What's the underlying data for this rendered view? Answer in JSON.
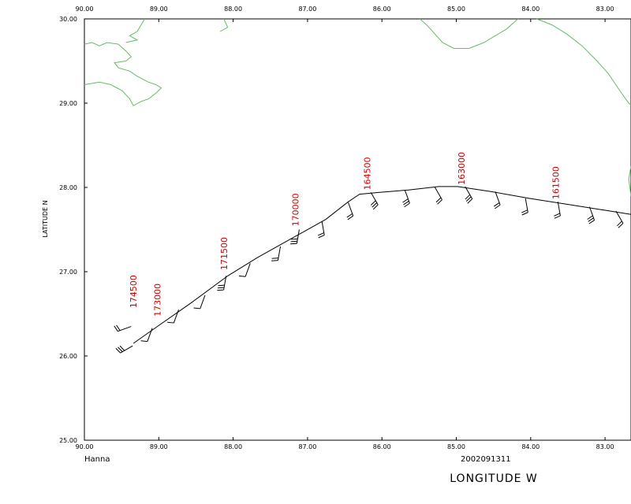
{
  "map": {
    "x_ticks": [
      "90.00",
      "89.00",
      "88.00",
      "87.00",
      "86.00",
      "85.00",
      "84.00",
      "83.00"
    ],
    "y_ticks": [
      "30.00",
      "29.00",
      "28.00",
      "27.00",
      "26.00",
      "25.00"
    ],
    "ylabel": "LATITUDE  N",
    "xlabel": "LONGITUDE  W",
    "storm_name": "Hanna",
    "date": "2002091311",
    "lon_range": [
      -90.0,
      -82.75
    ],
    "lat_range": [
      25.0,
      30.0
    ],
    "coast_color": "#66bb66",
    "track_color": "#000000",
    "label_color": "#d40000"
  },
  "chart_data": {
    "type": "map",
    "track": [
      {
        "lon": -89.35,
        "lat": 26.15
      },
      {
        "lon": -89.0,
        "lat": 26.37
      },
      {
        "lon": -88.6,
        "lat": 26.62
      },
      {
        "lon": -88.1,
        "lat": 26.95
      },
      {
        "lon": -87.7,
        "lat": 27.17
      },
      {
        "lon": -87.2,
        "lat": 27.42
      },
      {
        "lon": -86.8,
        "lat": 27.62
      },
      {
        "lon": -86.5,
        "lat": 27.83
      },
      {
        "lon": -86.35,
        "lat": 27.92
      },
      {
        "lon": -86.1,
        "lat": 27.94
      },
      {
        "lon": -85.7,
        "lat": 27.97
      },
      {
        "lon": -85.3,
        "lat": 28.01
      },
      {
        "lon": -85.05,
        "lat": 28.01
      },
      {
        "lon": -84.6,
        "lat": 27.95
      },
      {
        "lon": -84.1,
        "lat": 27.87
      },
      {
        "lon": -83.6,
        "lat": 27.8
      },
      {
        "lon": -83.1,
        "lat": 27.73
      },
      {
        "lon": -82.75,
        "lat": 27.68
      }
    ],
    "time_labels": [
      {
        "text": "174500",
        "lon": -89.35,
        "lat": 26.55
      },
      {
        "text": "173000",
        "lon": -89.03,
        "lat": 26.45
      },
      {
        "text": "171500",
        "lon": -88.15,
        "lat": 27.0
      },
      {
        "text": "170000",
        "lon": -87.2,
        "lat": 27.52
      },
      {
        "text": "164500",
        "lon": -86.25,
        "lat": 27.95
      },
      {
        "text": "163000",
        "lon": -85.0,
        "lat": 28.01
      },
      {
        "text": "161500",
        "lon": -83.75,
        "lat": 27.84
      }
    ],
    "wind_barbs": [
      {
        "lon": -89.36,
        "lat": 26.12,
        "dir": 240,
        "feathers": 3
      },
      {
        "lon": -89.38,
        "lat": 26.35,
        "dir": 250,
        "feathers": 2
      },
      {
        "lon": -89.1,
        "lat": 26.33,
        "dir": 200,
        "feathers": 1
      },
      {
        "lon": -88.75,
        "lat": 26.55,
        "dir": 200,
        "feathers": 1
      },
      {
        "lon": -88.4,
        "lat": 26.72,
        "dir": 200,
        "feathers": 1
      },
      {
        "lon": -88.12,
        "lat": 26.95,
        "dir": 190,
        "feathers": 3
      },
      {
        "lon": -87.8,
        "lat": 27.1,
        "dir": 200,
        "feathers": 1
      },
      {
        "lon": -87.4,
        "lat": 27.3,
        "dir": 190,
        "feathers": 2
      },
      {
        "lon": -87.15,
        "lat": 27.5,
        "dir": 190,
        "feathers": 3
      },
      {
        "lon": -86.85,
        "lat": 27.6,
        "dir": 170,
        "feathers": 2
      },
      {
        "lon": -86.5,
        "lat": 27.82,
        "dir": 160,
        "feathers": 2
      },
      {
        "lon": -86.2,
        "lat": 27.94,
        "dir": 150,
        "feathers": 3
      },
      {
        "lon": -85.75,
        "lat": 27.97,
        "dir": 160,
        "feathers": 3
      },
      {
        "lon": -85.35,
        "lat": 28.0,
        "dir": 150,
        "feathers": 2
      },
      {
        "lon": -84.95,
        "lat": 28.01,
        "dir": 150,
        "feathers": 3
      },
      {
        "lon": -84.55,
        "lat": 27.95,
        "dir": 160,
        "feathers": 2
      },
      {
        "lon": -84.15,
        "lat": 27.87,
        "dir": 170,
        "feathers": 2
      },
      {
        "lon": -83.72,
        "lat": 27.83,
        "dir": 170,
        "feathers": 2
      },
      {
        "lon": -83.3,
        "lat": 27.77,
        "dir": 160,
        "feathers": 3
      },
      {
        "lon": -82.95,
        "lat": 27.72,
        "dir": 150,
        "feathers": 2
      }
    ],
    "coastlines": [
      [
        [
          -90.0,
          29.7
        ],
        [
          -89.9,
          29.72
        ],
        [
          -89.8,
          29.68
        ],
        [
          -89.7,
          29.72
        ],
        [
          -89.55,
          29.7
        ],
        [
          -89.45,
          29.62
        ],
        [
          -89.38,
          29.55
        ],
        [
          -89.45,
          29.5
        ],
        [
          -89.6,
          29.48
        ],
        [
          -89.55,
          29.42
        ],
        [
          -89.4,
          29.38
        ],
        [
          -89.3,
          29.32
        ],
        [
          -89.15,
          29.25
        ],
        [
          -89.05,
          29.22
        ],
        [
          -88.98,
          29.18
        ],
        [
          -89.05,
          29.12
        ],
        [
          -89.15,
          29.05
        ],
        [
          -89.25,
          29.02
        ],
        [
          -89.35,
          28.97
        ],
        [
          -89.4,
          29.05
        ],
        [
          -89.5,
          29.15
        ],
        [
          -89.65,
          29.22
        ],
        [
          -89.8,
          29.25
        ],
        [
          -90.0,
          29.22
        ]
      ],
      [
        [
          -89.2,
          30.0
        ],
        [
          -89.3,
          29.85
        ],
        [
          -89.4,
          29.8
        ],
        [
          -89.3,
          29.75
        ],
        [
          -89.45,
          29.72
        ]
      ],
      [
        [
          -88.15,
          30.0
        ],
        [
          -88.1,
          29.9
        ],
        [
          -88.2,
          29.85
        ]
      ],
      [
        [
          -85.55,
          30.0
        ],
        [
          -85.45,
          29.92
        ],
        [
          -85.35,
          29.82
        ],
        [
          -85.25,
          29.72
        ],
        [
          -85.1,
          29.65
        ],
        [
          -84.9,
          29.65
        ],
        [
          -84.7,
          29.72
        ],
        [
          -84.55,
          29.8
        ],
        [
          -84.4,
          29.88
        ],
        [
          -84.25,
          30.0
        ]
      ],
      [
        [
          -84.0,
          30.0
        ],
        [
          -83.8,
          29.93
        ],
        [
          -83.6,
          29.82
        ],
        [
          -83.4,
          29.68
        ],
        [
          -83.2,
          29.5
        ],
        [
          -83.05,
          29.35
        ],
        [
          -82.9,
          29.15
        ],
        [
          -82.78,
          29.0
        ],
        [
          -82.75,
          28.98
        ]
      ],
      [
        [
          -82.75,
          28.25
        ],
        [
          -82.78,
          28.1
        ],
        [
          -82.75,
          27.9
        ]
      ]
    ]
  }
}
